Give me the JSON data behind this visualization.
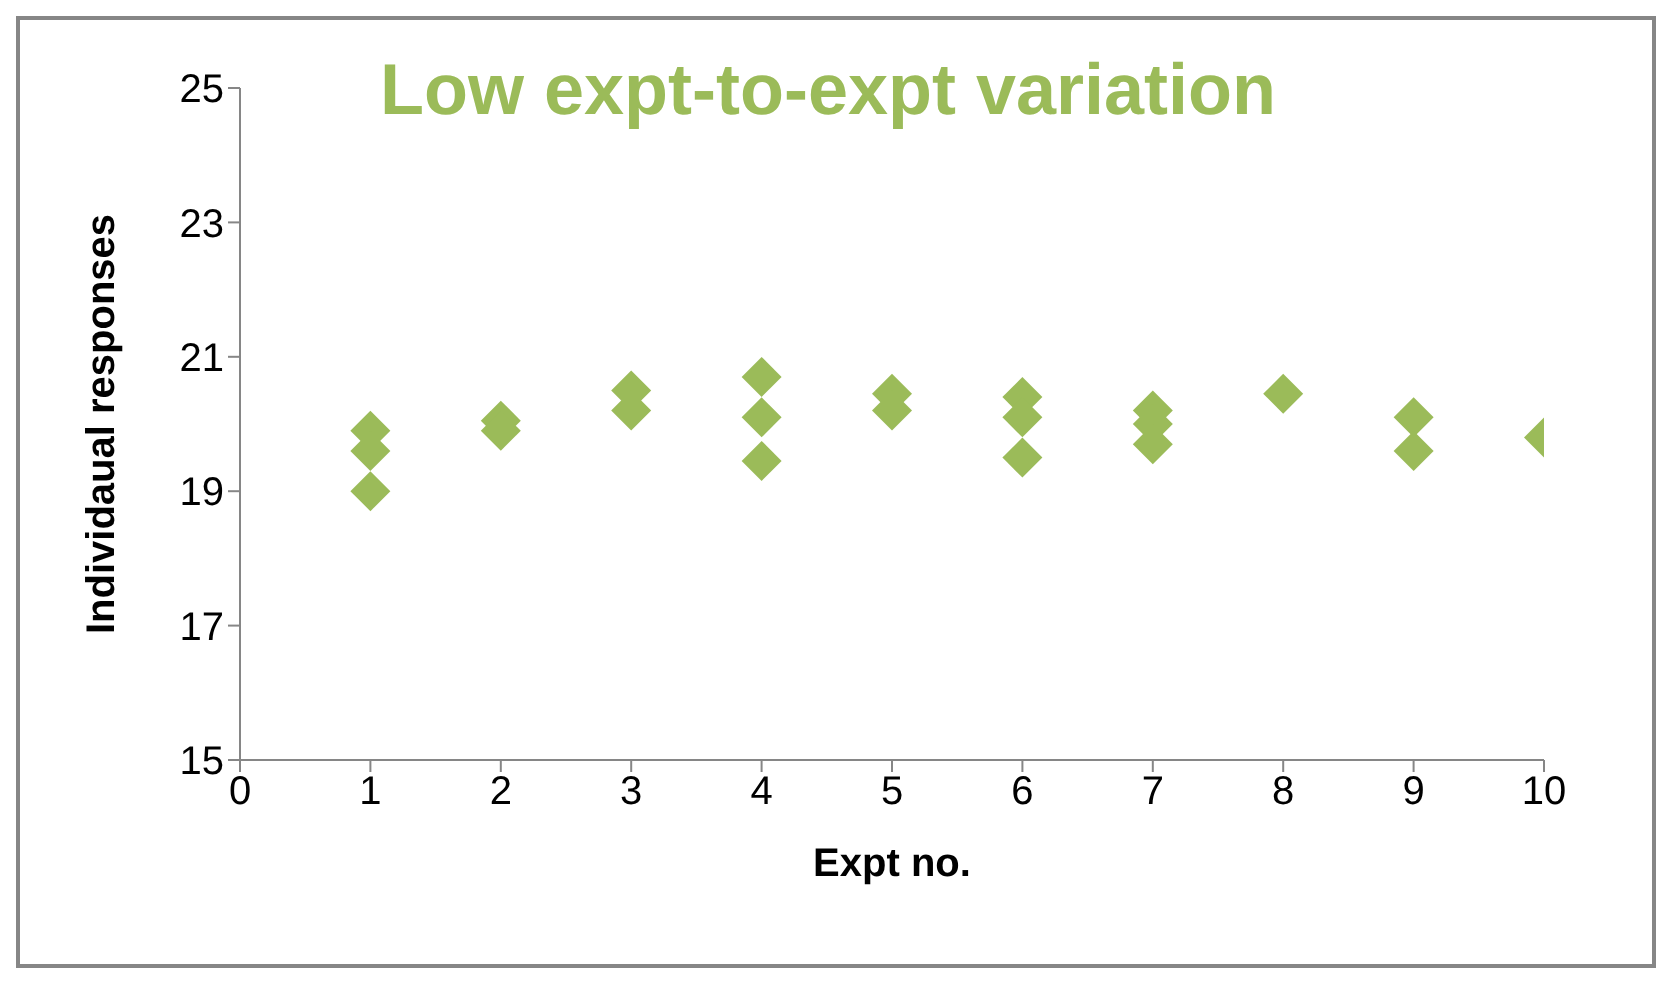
{
  "chart_data": {
    "type": "scatter",
    "title": "Low expt-to-expt variation",
    "xlabel": "Expt no.",
    "ylabel": "Individaual  responses",
    "marker": "diamond",
    "grid": false,
    "legend": false,
    "xlim": [
      0,
      10
    ],
    "xticks": [
      0,
      1,
      2,
      3,
      4,
      5,
      6,
      7,
      8,
      9,
      10
    ],
    "ylim": [
      15,
      25
    ],
    "yticks": [
      15,
      17,
      19,
      21,
      23,
      25
    ],
    "series": [
      {
        "color": "#9bbb59",
        "x": [
          1,
          1,
          1,
          2,
          2,
          3,
          3,
          4,
          4,
          4,
          5,
          5,
          6,
          6,
          6,
          7,
          7,
          7,
          8,
          9,
          9,
          10
        ],
        "values": [
          19.9,
          19.6,
          19.0,
          20.05,
          19.9,
          20.5,
          20.2,
          20.7,
          20.1,
          19.45,
          20.45,
          20.2,
          20.4,
          20.1,
          19.5,
          20.2,
          20.0,
          19.7,
          20.45,
          20.1,
          19.6,
          19.8
        ]
      }
    ]
  }
}
